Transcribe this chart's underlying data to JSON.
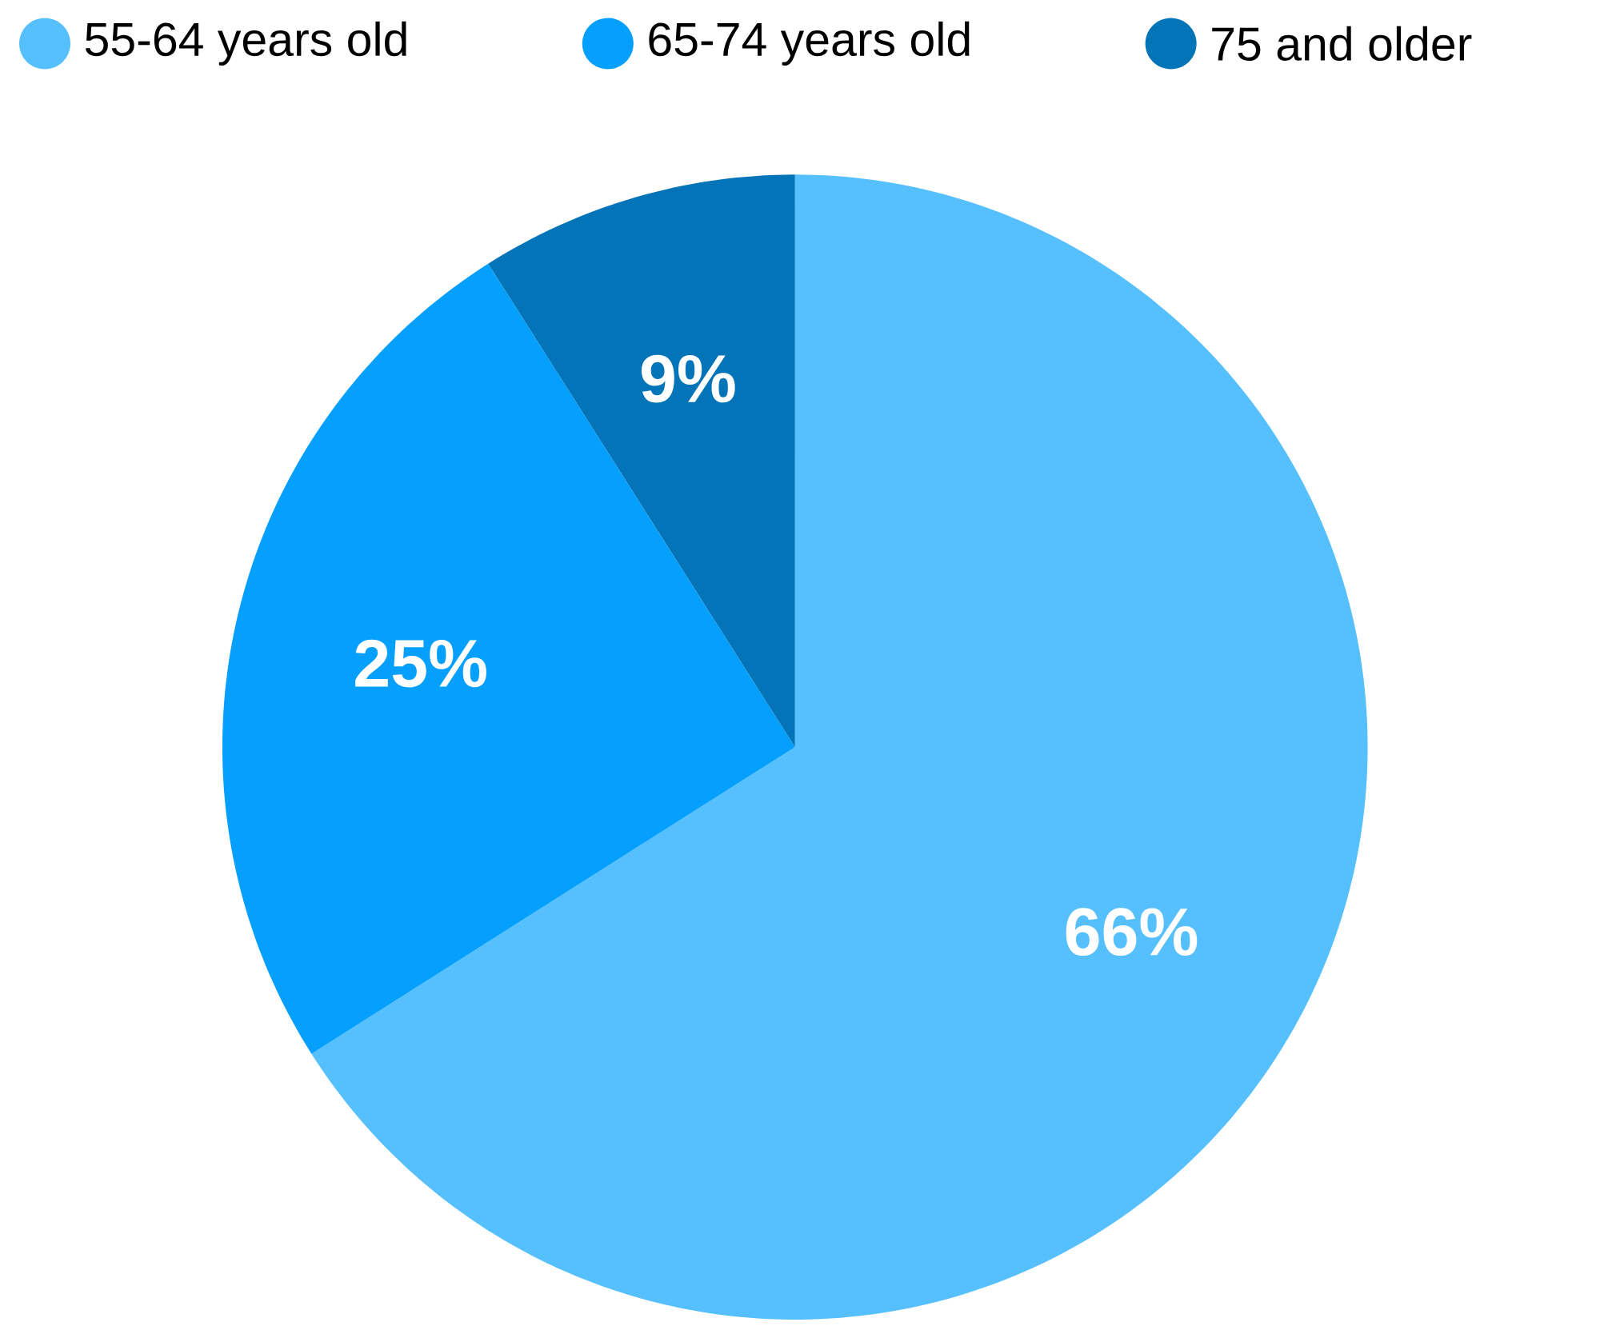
{
  "chart_data": {
    "type": "pie",
    "categories": [
      "55-64 years old",
      "65-74 years old",
      "75 and older"
    ],
    "values": [
      66,
      25,
      9
    ],
    "value_labels": [
      "66%",
      "25%",
      "9%"
    ],
    "colors": [
      "#56c0ff",
      "#05a0fd",
      "#0474b8"
    ],
    "legend": "top"
  }
}
